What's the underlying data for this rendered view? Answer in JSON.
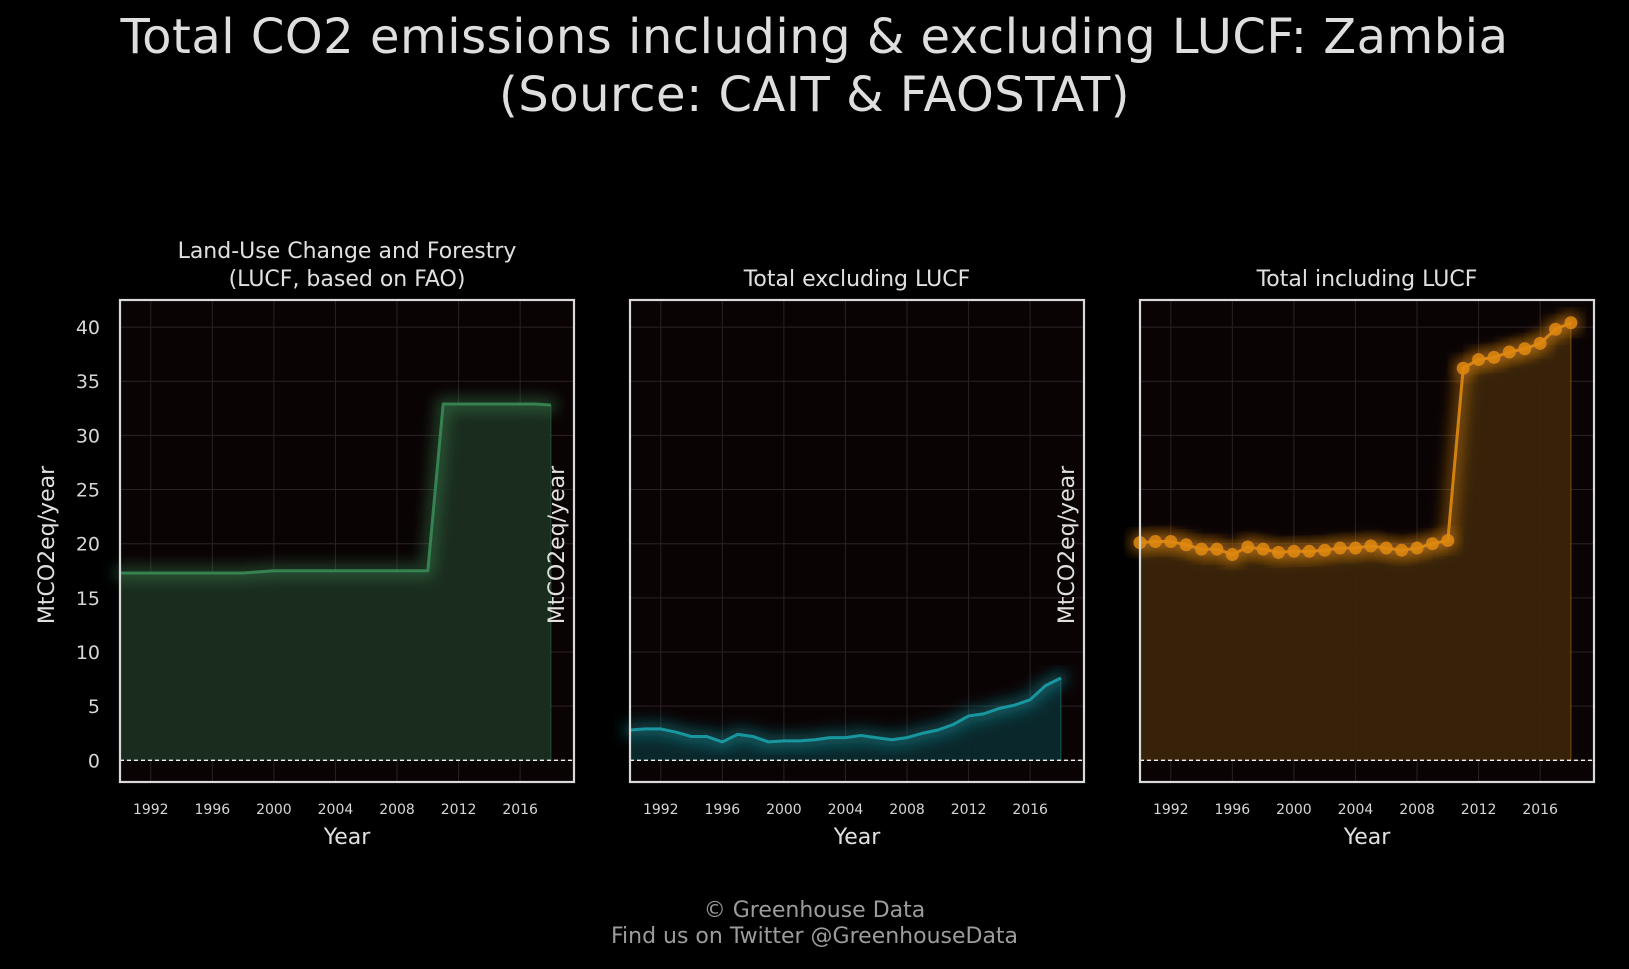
{
  "title": {
    "line1": "Total CO2 emissions including & excluding LUCF: Zambia",
    "line2": "(Source: CAIT & FAOSTAT)"
  },
  "footer": {
    "line1": "© Greenhouse Data",
    "line2": "Find us on Twitter @GreenhouseData"
  },
  "chart_data": [
    {
      "type": "area",
      "title": "Land-Use Change and Forestry\n(LUCF, based on FAO)",
      "xlabel": "Year",
      "ylabel": "MtCO2eq/year",
      "xlim": [
        1990,
        2019.5
      ],
      "ylim": [
        -2,
        42.5
      ],
      "xticks": [
        1992,
        1996,
        2000,
        2004,
        2008,
        2012,
        2016
      ],
      "yticks": [
        0,
        5,
        10,
        15,
        20,
        25,
        30,
        35,
        40
      ],
      "show_yticks": true,
      "markers": false,
      "color": "#3a8a55",
      "fill": "#1b2e20",
      "grid": true,
      "zero_line": true,
      "x": [
        1990,
        1991,
        1992,
        1993,
        1994,
        1995,
        1996,
        1997,
        1998,
        1999,
        2000,
        2001,
        2002,
        2003,
        2004,
        2005,
        2006,
        2007,
        2008,
        2009,
        2010,
        2011,
        2012,
        2013,
        2014,
        2015,
        2016,
        2017,
        2018
      ],
      "y": [
        17.3,
        17.3,
        17.3,
        17.3,
        17.3,
        17.3,
        17.3,
        17.3,
        17.3,
        17.4,
        17.5,
        17.5,
        17.5,
        17.5,
        17.5,
        17.5,
        17.5,
        17.5,
        17.5,
        17.5,
        17.5,
        32.9,
        32.9,
        32.9,
        32.9,
        32.9,
        32.9,
        32.9,
        32.8
      ]
    },
    {
      "type": "area",
      "title": "Total excluding LUCF",
      "xlabel": "Year",
      "ylabel": "MtCO2eq/year",
      "xlim": [
        1990,
        2019.5
      ],
      "ylim": [
        -2,
        42.5
      ],
      "xticks": [
        1992,
        1996,
        2000,
        2004,
        2008,
        2012,
        2016
      ],
      "yticks": [
        0,
        5,
        10,
        15,
        20,
        25,
        30,
        35,
        40
      ],
      "show_yticks": false,
      "markers": false,
      "color": "#1aa0a8",
      "fill": "#0b2a2e",
      "grid": true,
      "zero_line": true,
      "x": [
        1990,
        1991,
        1992,
        1993,
        1994,
        1995,
        1996,
        1997,
        1998,
        1999,
        2000,
        2001,
        2002,
        2003,
        2004,
        2005,
        2006,
        2007,
        2008,
        2009,
        2010,
        2011,
        2012,
        2013,
        2014,
        2015,
        2016,
        2017,
        2018
      ],
      "y": [
        2.8,
        2.9,
        2.9,
        2.6,
        2.2,
        2.2,
        1.7,
        2.4,
        2.2,
        1.7,
        1.8,
        1.8,
        1.9,
        2.1,
        2.1,
        2.3,
        2.1,
        1.9,
        2.1,
        2.5,
        2.8,
        3.3,
        4.1,
        4.3,
        4.8,
        5.1,
        5.6,
        6.9,
        7.6
      ]
    },
    {
      "type": "area",
      "title": "Total including LUCF",
      "xlabel": "Year",
      "ylabel": "MtCO2eq/year",
      "xlim": [
        1990,
        2019.5
      ],
      "ylim": [
        -2,
        42.5
      ],
      "xticks": [
        1992,
        1996,
        2000,
        2004,
        2008,
        2012,
        2016
      ],
      "yticks": [
        0,
        5,
        10,
        15,
        20,
        25,
        30,
        35,
        40
      ],
      "show_yticks": false,
      "markers": true,
      "color": "#e08a10",
      "fill": "#3a2409",
      "grid": true,
      "zero_line": true,
      "x": [
        1990,
        1991,
        1992,
        1993,
        1994,
        1995,
        1996,
        1997,
        1998,
        1999,
        2000,
        2001,
        2002,
        2003,
        2004,
        2005,
        2006,
        2007,
        2008,
        2009,
        2010,
        2011,
        2012,
        2013,
        2014,
        2015,
        2016,
        2017,
        2018
      ],
      "y": [
        20.1,
        20.2,
        20.2,
        19.9,
        19.5,
        19.5,
        19.0,
        19.7,
        19.5,
        19.2,
        19.3,
        19.3,
        19.4,
        19.6,
        19.6,
        19.8,
        19.6,
        19.4,
        19.6,
        20.0,
        20.3,
        36.2,
        37.0,
        37.2,
        37.7,
        38.0,
        38.5,
        39.8,
        40.4
      ]
    }
  ]
}
